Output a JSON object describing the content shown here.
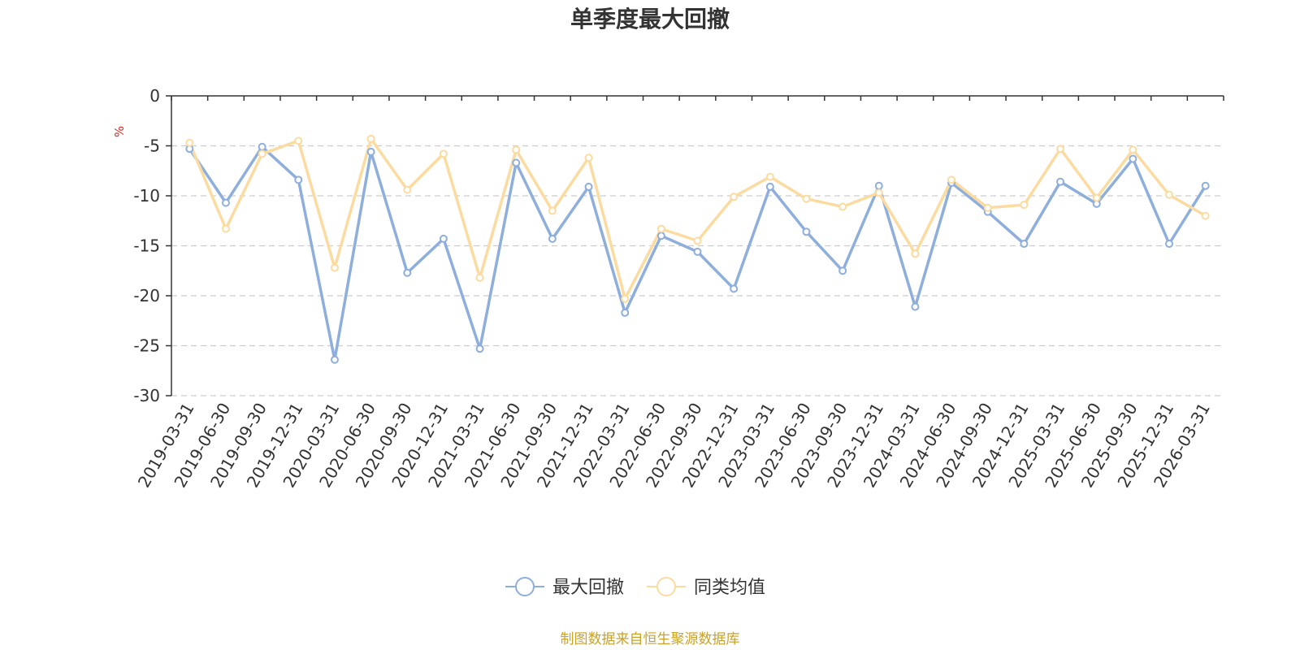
{
  "chart_data": {
    "type": "line",
    "title": "单季度最大回撤",
    "ylabel": "%",
    "xlabel": "",
    "ylim": [
      -30,
      0
    ],
    "yticks": [
      0,
      -5,
      -10,
      -15,
      -20,
      -25,
      -30
    ],
    "grid": true,
    "legend_position": "bottom",
    "categories": [
      "2019-03-31",
      "2019-06-30",
      "2019-09-30",
      "2019-12-31",
      "2020-03-31",
      "2020-06-30",
      "2020-09-30",
      "2020-12-31",
      "2021-03-31",
      "2021-06-30",
      "2021-09-30",
      "2021-12-31",
      "2022-03-31",
      "2022-06-30",
      "2022-09-30",
      "2022-12-31",
      "2023-03-31",
      "2023-06-30",
      "2023-09-30",
      "2023-12-31",
      "2024-03-31",
      "2024-06-30",
      "2024-09-30",
      "2024-12-31",
      "2025-03-31",
      "2025-06-30",
      "2025-09-30",
      "2025-12-31",
      "2026-03-31"
    ],
    "series": [
      {
        "name": "最大回撤",
        "color": "#8eaedc",
        "values": [
          -5.3,
          -10.7,
          -5.1,
          -8.4,
          -26.4,
          -5.6,
          -17.7,
          -14.3,
          -25.3,
          -6.7,
          -14.3,
          -9.1,
          -21.7,
          -14.0,
          -15.6,
          -19.3,
          -9.1,
          -13.6,
          -17.5,
          -9.0,
          -21.1,
          -8.7,
          -11.6,
          -14.8,
          -8.6,
          -10.8,
          -6.3,
          -14.8,
          -9.0
        ]
      },
      {
        "name": "同类均值",
        "color": "#fcdba0",
        "values": [
          -4.7,
          -13.3,
          -5.8,
          -4.5,
          -17.2,
          -4.3,
          -9.4,
          -5.8,
          -18.2,
          -5.4,
          -11.5,
          -6.2,
          -20.3,
          -13.3,
          -14.5,
          -10.1,
          -8.1,
          -10.3,
          -11.1,
          -9.7,
          -15.8,
          -8.4,
          -11.2,
          -10.9,
          -5.3,
          -10.2,
          -5.4,
          -9.9,
          -12.0
        ]
      }
    ],
    "source": "制图数据来自恒生聚源数据库"
  }
}
